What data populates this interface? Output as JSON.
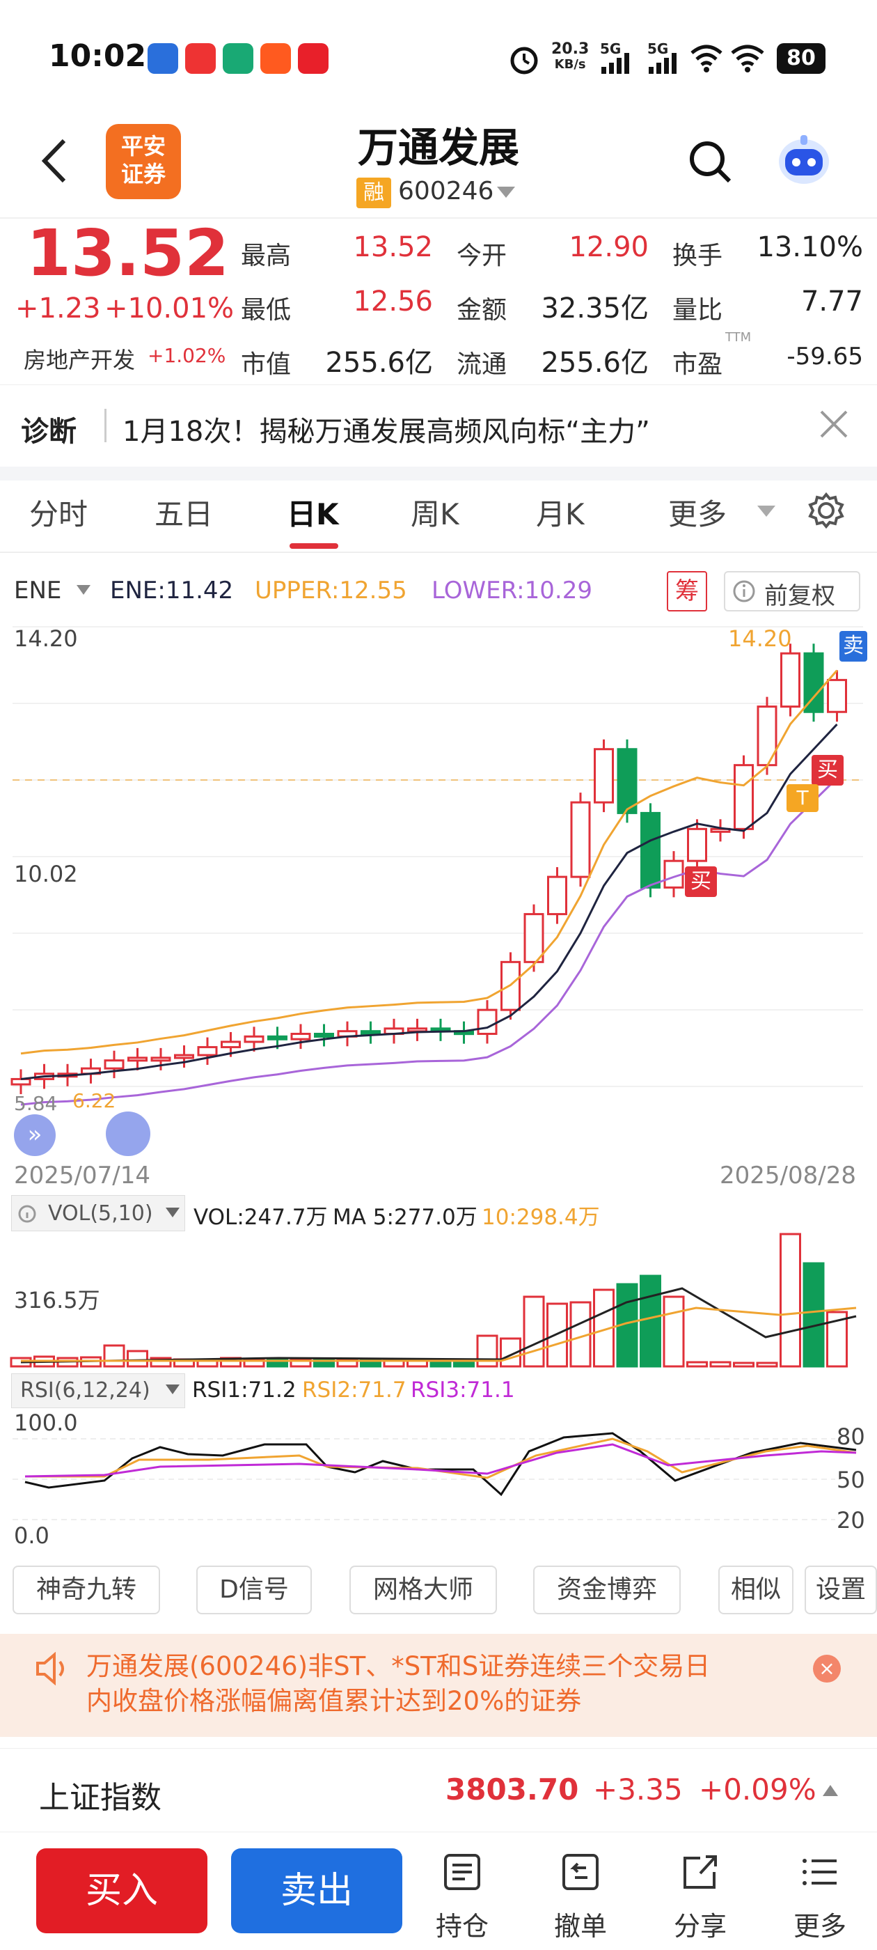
{
  "status_bar": {
    "time": "10:02",
    "net_speed_value": "20.3",
    "net_speed_unit": "KB/s",
    "signal1_label": "5G",
    "signal2_label": "5G",
    "battery": "80",
    "icons": [
      "alarm-icon",
      "signal-icon",
      "wifi-icon",
      "battery-icon"
    ]
  },
  "header": {
    "logo_line1": "平安",
    "logo_line2": "证券",
    "stock_name": "万通发展",
    "margin_badge": "融",
    "stock_code": "600246"
  },
  "quote": {
    "price": "13.52",
    "change": "+1.23",
    "change_pct": "+10.01%",
    "sector": "房地产开发",
    "sector_pct": "+1.02%",
    "rows": [
      [
        {
          "label": "最高",
          "value": "13.52",
          "color": "red"
        },
        {
          "label": "今开",
          "value": "12.90",
          "color": "red"
        },
        {
          "label": "换手",
          "value": "13.10%",
          "color": "dark"
        }
      ],
      [
        {
          "label": "最低",
          "value": "12.56",
          "color": "red"
        },
        {
          "label": "金额",
          "value": "32.35亿",
          "color": "dark"
        },
        {
          "label": "量比",
          "value": "7.77",
          "color": "dark"
        }
      ],
      [
        {
          "label": "市值",
          "value": "255.6亿",
          "color": "dark"
        },
        {
          "label": "流通",
          "value": "255.6亿",
          "color": "dark"
        },
        {
          "label": "市盈",
          "value": "-59.65",
          "color": "dark"
        }
      ]
    ],
    "ttm": "TTM"
  },
  "diagnosis": {
    "tag": "诊断",
    "text": "1月18次！揭秘万通发展高频风向标“主力”"
  },
  "tabs": [
    "分时",
    "五日",
    "日K",
    "周K",
    "月K",
    "更多"
  ],
  "active_tab": "日K",
  "indicator": {
    "name": "ENE",
    "ene": "ENE:11.42",
    "upper": "UPPER:12.55",
    "lower": "LOWER:10.29",
    "chip_label": "筹",
    "adjust_label": "前复权"
  },
  "kline": {
    "y_high": "14.20",
    "y_mid": "10.02",
    "peak_label": "14.20",
    "low_label": "5.84",
    "low_label2": "6.22",
    "date_start": "2025/07/14",
    "date_end": "2025/08/28",
    "sell_tag": "卖",
    "buy_tag": "买",
    "t_tag": "T"
  },
  "vol": {
    "name": "VOL(5,10)",
    "vol": "VOL:247.7万",
    "ma5": "MA 5:277.0万",
    "ma10": "10:298.4万",
    "y_label": "316.5万"
  },
  "rsi": {
    "name": "RSI(6,12,24)",
    "rsi1": "RSI1:71.2",
    "rsi2": "RSI2:71.7",
    "rsi3": "RSI3:71.1",
    "y_top": "100.0",
    "y_bottom": "0.0",
    "r80": "80",
    "r50": "50",
    "r20": "20"
  },
  "tools": [
    "神奇九转",
    "D信号",
    "网格大师",
    "资金博弈",
    "相似",
    "设置"
  ],
  "notice": {
    "line1": "万通发展(600246)非ST、*ST和S证券连续三个交易日",
    "line2": "内收盘价格涨幅偏离值累计达到20%的证券"
  },
  "index_bar": {
    "name": "上证指数",
    "value": "3803.70",
    "change": "+3.35",
    "pct": "+0.09%"
  },
  "bottom": {
    "buy": "买入",
    "sell": "卖出",
    "hold": "持仓",
    "cancel": "撤单",
    "share": "分享",
    "more": "更多"
  },
  "colors": {
    "up": "#e0313a",
    "down": "#0f9d58",
    "upper_line": "#f0a431",
    "ene_line": "#1f2440",
    "lower_line": "#a865d9",
    "buy_button": "#e21d25",
    "sell_button": "#1f6fe0"
  }
}
